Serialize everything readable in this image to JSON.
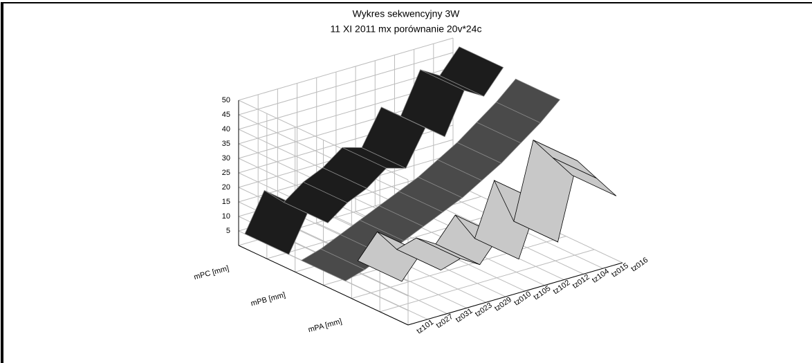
{
  "chart_data": {
    "type": "ribbon3d",
    "title": "Wykres sekwencyjny 3W",
    "subtitle": "11 XI 2011 mx porównanie 20v*24c",
    "categories": [
      "tz101",
      "tz027",
      "tz031",
      "tz023",
      "tz029",
      "tz010",
      "tz105",
      "tz102",
      "tz012",
      "tz104",
      "tz015",
      "tz016"
    ],
    "series": [
      {
        "name": "mPC [mm]",
        "color": "#1c1c1c",
        "values": [
          5,
          18,
          12,
          17,
          20,
          25,
          23,
          35,
          30,
          44,
          40,
          48
        ]
      },
      {
        "name": "mPB [mm]",
        "color": "#4a4a4a",
        "values": [
          5,
          7,
          10,
          13,
          16,
          19,
          22,
          26,
          30,
          35,
          40,
          46
        ]
      },
      {
        "name": "mPA [mm]",
        "color": "#c8c8c8",
        "values": [
          14,
          22,
          14,
          16,
          12,
          20,
          10,
          28,
          12,
          38,
          30,
          22
        ]
      }
    ],
    "ylim": [
      0,
      50
    ],
    "yticks": [
      5,
      10,
      15,
      20,
      25,
      30,
      35,
      40,
      45,
      50
    ],
    "grid": true
  }
}
